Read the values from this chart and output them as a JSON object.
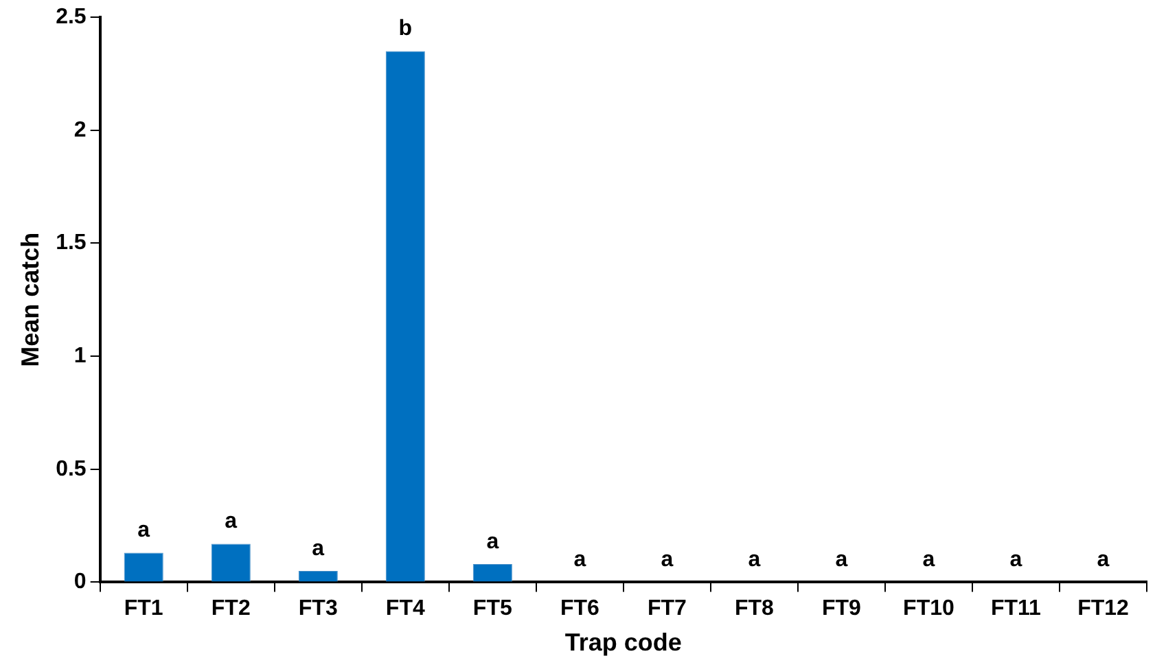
{
  "chart_data": {
    "type": "bar",
    "xlabel": "Trap code",
    "ylabel": "Mean catch",
    "categories": [
      "FT1",
      "FT2",
      "FT3",
      "FT4",
      "FT5",
      "FT6",
      "FT7",
      "FT8",
      "FT9",
      "FT10",
      "FT11",
      "FT12"
    ],
    "values": [
      0.13,
      0.17,
      0.05,
      2.35,
      0.08,
      0,
      0,
      0,
      0,
      0,
      0,
      0
    ],
    "color": "#0070c0",
    "ylim": [
      0,
      2.5
    ],
    "yticks": [
      0,
      0.5,
      1,
      1.5,
      2,
      2.5
    ],
    "grid": false,
    "legend": false,
    "annotations": [
      {
        "text": "a",
        "x": "FT1",
        "y": 0.13
      },
      {
        "text": "a",
        "x": "FT2",
        "y": 0.17
      },
      {
        "text": "a",
        "x": "FT3",
        "y": 0.05
      },
      {
        "text": "b",
        "x": "FT4",
        "y": 2.35
      },
      {
        "text": "a",
        "x": "FT5",
        "y": 0.08
      },
      {
        "text": "a",
        "x": "FT6",
        "y": 0
      },
      {
        "text": "a",
        "x": "FT7",
        "y": 0
      },
      {
        "text": "a",
        "x": "FT8",
        "y": 0
      },
      {
        "text": "a",
        "x": "FT9",
        "y": 0
      },
      {
        "text": "a",
        "x": "FT10",
        "y": 0
      },
      {
        "text": "a",
        "x": "FT11",
        "y": 0
      },
      {
        "text": "a",
        "x": "FT12",
        "y": 0
      }
    ]
  }
}
